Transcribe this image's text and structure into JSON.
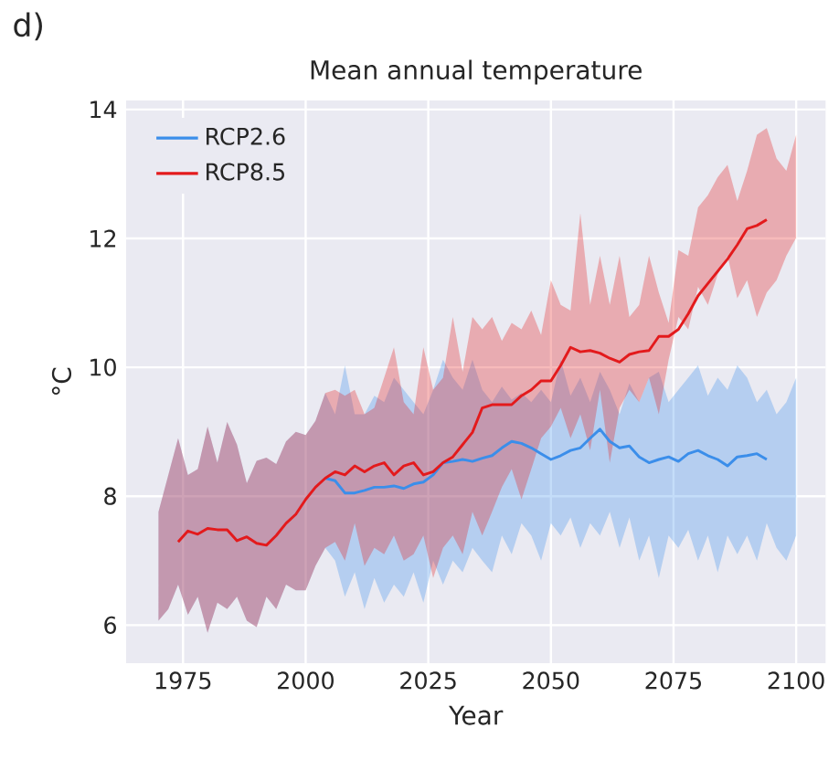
{
  "chart_data": {
    "type": "line",
    "title": "Mean annual temperature",
    "xlabel": "Year",
    "ylabel": "°C",
    "annotations": [
      "d)"
    ],
    "x": [
      1970,
      1972,
      1974,
      1976,
      1978,
      1980,
      1982,
      1984,
      1986,
      1988,
      1990,
      1992,
      1994,
      1996,
      1998,
      2000,
      2002,
      2004,
      2006,
      2008,
      2010,
      2012,
      2014,
      2016,
      2018,
      2020,
      2022,
      2024,
      2026,
      2028,
      2030,
      2032,
      2034,
      2036,
      2038,
      2040,
      2042,
      2044,
      2046,
      2048,
      2050,
      2052,
      2054,
      2056,
      2058,
      2060,
      2062,
      2064,
      2066,
      2068,
      2070,
      2072,
      2074,
      2076,
      2078,
      2080,
      2082,
      2084,
      2086,
      2088,
      2090,
      2092,
      2094,
      2096,
      2098,
      2100
    ],
    "series": [
      {
        "name": "RCP2.6",
        "color": "#3b8eea",
        "values": [
          null,
          null,
          null,
          null,
          null,
          null,
          null,
          null,
          null,
          null,
          null,
          null,
          null,
          null,
          null,
          null,
          null,
          8.28,
          8.24,
          8.05,
          8.05,
          8.09,
          8.14,
          8.14,
          8.16,
          8.12,
          8.19,
          8.22,
          8.33,
          8.52,
          8.54,
          8.57,
          8.54,
          8.59,
          8.63,
          8.75,
          8.85,
          8.82,
          8.75,
          8.66,
          8.57,
          8.63,
          8.71,
          8.75,
          8.9,
          9.04,
          8.85,
          8.75,
          8.78,
          8.61,
          8.52,
          8.57,
          8.61,
          8.54,
          8.66,
          8.71,
          8.63,
          8.57,
          8.47,
          8.61,
          8.63,
          8.66,
          8.57,
          null,
          null,
          null
        ],
        "lower": [
          6.07,
          6.25,
          6.63,
          6.16,
          6.44,
          5.88,
          6.35,
          6.25,
          6.44,
          6.07,
          5.97,
          6.44,
          6.25,
          6.63,
          6.54,
          6.54,
          6.92,
          7.2,
          7.0,
          6.44,
          6.82,
          6.25,
          6.73,
          6.35,
          6.63,
          6.44,
          6.82,
          6.35,
          7.0,
          6.63,
          7.0,
          6.82,
          7.2,
          7.0,
          6.82,
          7.39,
          7.1,
          7.58,
          7.39,
          7.0,
          7.58,
          7.39,
          7.67,
          7.2,
          7.58,
          7.39,
          7.76,
          7.2,
          7.67,
          7.0,
          7.39,
          6.73,
          7.39,
          7.2,
          7.48,
          7.0,
          7.39,
          6.82,
          7.39,
          7.1,
          7.39,
          7.0,
          7.58,
          7.2,
          7.0,
          7.39
        ],
        "upper": [
          7.76,
          8.33,
          8.9,
          8.33,
          8.42,
          9.08,
          8.52,
          9.15,
          8.8,
          8.2,
          8.55,
          8.6,
          8.5,
          8.85,
          9.0,
          8.95,
          9.17,
          9.6,
          9.27,
          10.03,
          9.27,
          9.27,
          9.56,
          9.46,
          9.84,
          9.65,
          9.46,
          9.27,
          9.65,
          10.12,
          9.84,
          9.65,
          10.12,
          9.65,
          9.46,
          9.7,
          9.5,
          9.6,
          9.46,
          9.65,
          9.46,
          10.12,
          9.56,
          9.84,
          9.46,
          9.93,
          9.65,
          9.27,
          9.75,
          9.46,
          9.84,
          9.93,
          9.46,
          9.65,
          9.84,
          10.03,
          9.56,
          9.84,
          9.65,
          10.03,
          9.84,
          9.46,
          9.65,
          9.27,
          9.46,
          9.84
        ]
      },
      {
        "name": "RCP8.5",
        "color": "#e31a1c",
        "values": [
          null,
          null,
          7.29,
          7.46,
          7.41,
          7.5,
          7.48,
          7.48,
          7.31,
          7.37,
          7.27,
          7.24,
          7.39,
          7.58,
          7.72,
          7.95,
          8.14,
          8.28,
          8.38,
          8.33,
          8.47,
          8.38,
          8.47,
          8.52,
          8.33,
          8.47,
          8.52,
          8.33,
          8.38,
          8.52,
          8.61,
          8.8,
          8.99,
          9.37,
          9.42,
          9.42,
          9.42,
          9.56,
          9.65,
          9.79,
          9.79,
          10.03,
          10.31,
          10.24,
          10.26,
          10.22,
          10.14,
          10.08,
          10.2,
          10.24,
          10.26,
          10.48,
          10.48,
          10.59,
          10.83,
          11.11,
          11.3,
          11.49,
          11.68,
          11.9,
          12.15,
          12.2,
          12.29,
          null,
          null,
          null
        ],
        "lower": [
          6.07,
          6.25,
          6.63,
          6.16,
          6.44,
          5.88,
          6.35,
          6.25,
          6.44,
          6.07,
          5.97,
          6.44,
          6.25,
          6.63,
          6.54,
          6.54,
          6.92,
          7.2,
          7.29,
          7.0,
          7.58,
          6.92,
          7.2,
          7.1,
          7.39,
          7.0,
          7.1,
          7.39,
          6.73,
          7.2,
          7.39,
          7.1,
          7.76,
          7.39,
          7.76,
          8.14,
          8.42,
          7.95,
          8.42,
          8.9,
          9.08,
          9.37,
          8.9,
          9.27,
          8.71,
          9.65,
          8.52,
          9.37,
          9.65,
          9.46,
          9.84,
          9.27,
          10.12,
          10.78,
          10.59,
          11.25,
          10.97,
          11.44,
          11.73,
          11.07,
          11.35,
          10.78,
          11.16,
          11.35,
          11.73,
          12.01
        ],
        "upper": [
          7.76,
          8.33,
          8.9,
          8.33,
          8.42,
          9.08,
          8.52,
          9.15,
          8.8,
          8.2,
          8.55,
          8.6,
          8.5,
          8.85,
          9.0,
          8.95,
          9.17,
          9.6,
          9.65,
          9.56,
          9.65,
          9.27,
          9.37,
          9.84,
          10.31,
          9.46,
          9.27,
          10.31,
          9.65,
          9.84,
          10.78,
          9.93,
          10.78,
          10.59,
          10.78,
          10.41,
          10.69,
          10.59,
          10.88,
          10.5,
          11.35,
          10.97,
          10.88,
          12.39,
          10.97,
          11.73,
          10.97,
          11.73,
          10.78,
          10.97,
          11.73,
          11.16,
          10.69,
          11.82,
          11.73,
          12.48,
          12.67,
          12.95,
          13.14,
          12.58,
          13.05,
          13.61,
          13.71,
          13.24,
          13.05,
          13.61
        ]
      }
    ],
    "xlim": [
      1963.4,
      2106
    ],
    "ylim": [
      5.41,
      14.14
    ],
    "xticks": [
      1975,
      2000,
      2025,
      2050,
      2075,
      2100
    ],
    "yticks": [
      6,
      8,
      10,
      12,
      14
    ],
    "grid": true,
    "legend": "top left",
    "marker": "none",
    "line_style": "solid"
  }
}
